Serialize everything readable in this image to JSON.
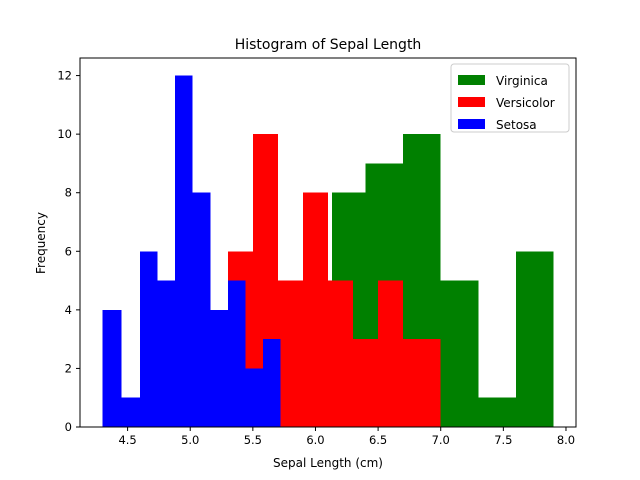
{
  "chart_data": {
    "type": "bar",
    "subtype": "histogram",
    "title": "Histogram of Sepal Length",
    "xlabel": "Sepal Length (cm)",
    "ylabel": "Frequency",
    "xlim": [
      4.12,
      8.08
    ],
    "ylim": [
      0,
      12.6
    ],
    "xticks": [
      "4.5",
      "5.0",
      "5.5",
      "6.0",
      "6.5",
      "7.0",
      "7.5",
      "8.0"
    ],
    "yticks": [
      "0",
      "2",
      "4",
      "6",
      "8",
      "10",
      "12"
    ],
    "grid": false,
    "legend": "top-right",
    "series": [
      {
        "name": "Virginica",
        "color": "#008000",
        "bins": [
          {
            "x0": 6.13,
            "x1": 6.4,
            "value": 8
          },
          {
            "x0": 6.4,
            "x1": 6.7,
            "value": 9
          },
          {
            "x0": 6.7,
            "x1": 7.0,
            "value": 10
          },
          {
            "x0": 7.0,
            "x1": 7.3,
            "value": 5
          },
          {
            "x0": 7.3,
            "x1": 7.6,
            "value": 1
          },
          {
            "x0": 7.6,
            "x1": 7.9,
            "value": 6
          }
        ]
      },
      {
        "name": "Versicolor",
        "color": "#ff0000",
        "bins": [
          {
            "x0": 5.3,
            "x1": 5.5,
            "value": 6
          },
          {
            "x0": 5.5,
            "x1": 5.7,
            "value": 10
          },
          {
            "x0": 5.7,
            "x1": 5.9,
            "value": 5
          },
          {
            "x0": 5.9,
            "x1": 6.1,
            "value": 8
          },
          {
            "x0": 6.1,
            "x1": 6.3,
            "value": 5
          },
          {
            "x0": 6.3,
            "x1": 6.5,
            "value": 3
          },
          {
            "x0": 6.5,
            "x1": 6.7,
            "value": 5
          },
          {
            "x0": 6.7,
            "x1": 6.9,
            "value": 3
          },
          {
            "x0": 6.9,
            "x1": 7.0,
            "value": 3
          }
        ]
      },
      {
        "name": "Setosa",
        "color": "#0000ff",
        "bins": [
          {
            "x0": 4.3,
            "x1": 4.45,
            "value": 4
          },
          {
            "x0": 4.45,
            "x1": 4.6,
            "value": 1
          },
          {
            "x0": 4.6,
            "x1": 4.74,
            "value": 6
          },
          {
            "x0": 4.74,
            "x1": 4.88,
            "value": 5
          },
          {
            "x0": 4.88,
            "x1": 5.02,
            "value": 12
          },
          {
            "x0": 5.02,
            "x1": 5.16,
            "value": 8
          },
          {
            "x0": 5.16,
            "x1": 5.3,
            "value": 4
          },
          {
            "x0": 5.3,
            "x1": 5.44,
            "value": 5
          },
          {
            "x0": 5.44,
            "x1": 5.58,
            "value": 2
          },
          {
            "x0": 5.58,
            "x1": 5.72,
            "value": 3
          }
        ]
      }
    ]
  }
}
